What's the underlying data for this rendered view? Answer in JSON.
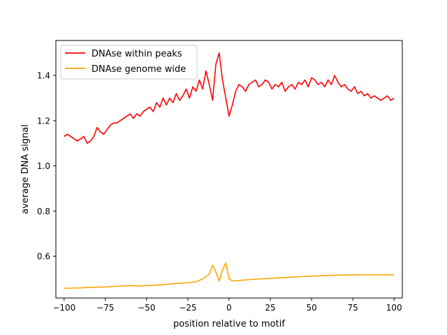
{
  "chart_data": {
    "type": "line",
    "xlabel": "position relative to motif",
    "ylabel": "average DNA signal",
    "xlim": [
      -105,
      105
    ],
    "ylim": [
      0.415,
      1.555
    ],
    "xticks": [
      -100,
      -75,
      -50,
      -25,
      0,
      25,
      50,
      75,
      100
    ],
    "xtick_labels": [
      "−100",
      "−75",
      "−50",
      "−25",
      "0",
      "25",
      "50",
      "75",
      "100"
    ],
    "yticks": [
      0.6,
      0.8,
      1.0,
      1.2,
      1.4
    ],
    "ytick_labels": [
      "0.6",
      "0.8",
      "1.0",
      "1.2",
      "1.4"
    ],
    "grid": false,
    "legend_position": "upper-left",
    "series": [
      {
        "name": "DNAse within peaks",
        "color": "#ff0000",
        "x": [
          -100,
          -98,
          -96,
          -94,
          -92,
          -90,
          -88,
          -86,
          -84,
          -82,
          -80,
          -78,
          -76,
          -74,
          -72,
          -70,
          -68,
          -66,
          -64,
          -62,
          -60,
          -58,
          -56,
          -54,
          -52,
          -50,
          -48,
          -46,
          -44,
          -42,
          -40,
          -38,
          -36,
          -34,
          -32,
          -30,
          -28,
          -26,
          -24,
          -22,
          -20,
          -18,
          -16,
          -14,
          -12,
          -10,
          -8,
          -6,
          -4,
          -2,
          0,
          2,
          4,
          6,
          8,
          10,
          12,
          14,
          16,
          18,
          20,
          22,
          24,
          26,
          28,
          30,
          32,
          34,
          36,
          38,
          40,
          42,
          44,
          46,
          48,
          50,
          52,
          54,
          56,
          58,
          60,
          62,
          64,
          66,
          68,
          70,
          72,
          74,
          76,
          78,
          80,
          82,
          84,
          86,
          88,
          90,
          92,
          94,
          96,
          98,
          100
        ],
        "y": [
          1.13,
          1.14,
          1.13,
          1.12,
          1.11,
          1.12,
          1.13,
          1.1,
          1.11,
          1.13,
          1.17,
          1.15,
          1.14,
          1.16,
          1.18,
          1.19,
          1.19,
          1.2,
          1.21,
          1.22,
          1.23,
          1.21,
          1.23,
          1.22,
          1.24,
          1.25,
          1.26,
          1.24,
          1.28,
          1.26,
          1.3,
          1.27,
          1.3,
          1.28,
          1.32,
          1.29,
          1.31,
          1.34,
          1.3,
          1.35,
          1.33,
          1.38,
          1.34,
          1.42,
          1.36,
          1.29,
          1.45,
          1.5,
          1.38,
          1.3,
          1.22,
          1.27,
          1.33,
          1.36,
          1.35,
          1.33,
          1.36,
          1.37,
          1.38,
          1.35,
          1.36,
          1.38,
          1.37,
          1.34,
          1.36,
          1.35,
          1.37,
          1.33,
          1.35,
          1.36,
          1.34,
          1.37,
          1.36,
          1.38,
          1.35,
          1.39,
          1.38,
          1.36,
          1.37,
          1.35,
          1.38,
          1.36,
          1.4,
          1.37,
          1.35,
          1.36,
          1.34,
          1.33,
          1.35,
          1.32,
          1.33,
          1.31,
          1.32,
          1.3,
          1.31,
          1.3,
          1.29,
          1.3,
          1.31,
          1.29,
          1.3
        ]
      },
      {
        "name": "DNAse genome wide",
        "color": "#ffa500",
        "x": [
          -100,
          -95,
          -90,
          -85,
          -80,
          -75,
          -70,
          -65,
          -60,
          -55,
          -50,
          -45,
          -40,
          -35,
          -30,
          -25,
          -20,
          -16,
          -12,
          -10,
          -8,
          -6,
          -4,
          -2,
          0,
          2,
          5,
          10,
          15,
          20,
          25,
          30,
          35,
          40,
          45,
          50,
          55,
          60,
          65,
          70,
          75,
          80,
          85,
          90,
          95,
          100
        ],
        "y": [
          0.458,
          0.459,
          0.46,
          0.462,
          0.463,
          0.464,
          0.466,
          0.468,
          0.47,
          0.468,
          0.47,
          0.472,
          0.474,
          0.478,
          0.48,
          0.483,
          0.487,
          0.5,
          0.52,
          0.56,
          0.53,
          0.49,
          0.54,
          0.57,
          0.5,
          0.49,
          0.492,
          0.495,
          0.498,
          0.5,
          0.502,
          0.504,
          0.506,
          0.508,
          0.51,
          0.512,
          0.513,
          0.515,
          0.516,
          0.517,
          0.517,
          0.518,
          0.518,
          0.518,
          0.518,
          0.518
        ]
      }
    ]
  }
}
